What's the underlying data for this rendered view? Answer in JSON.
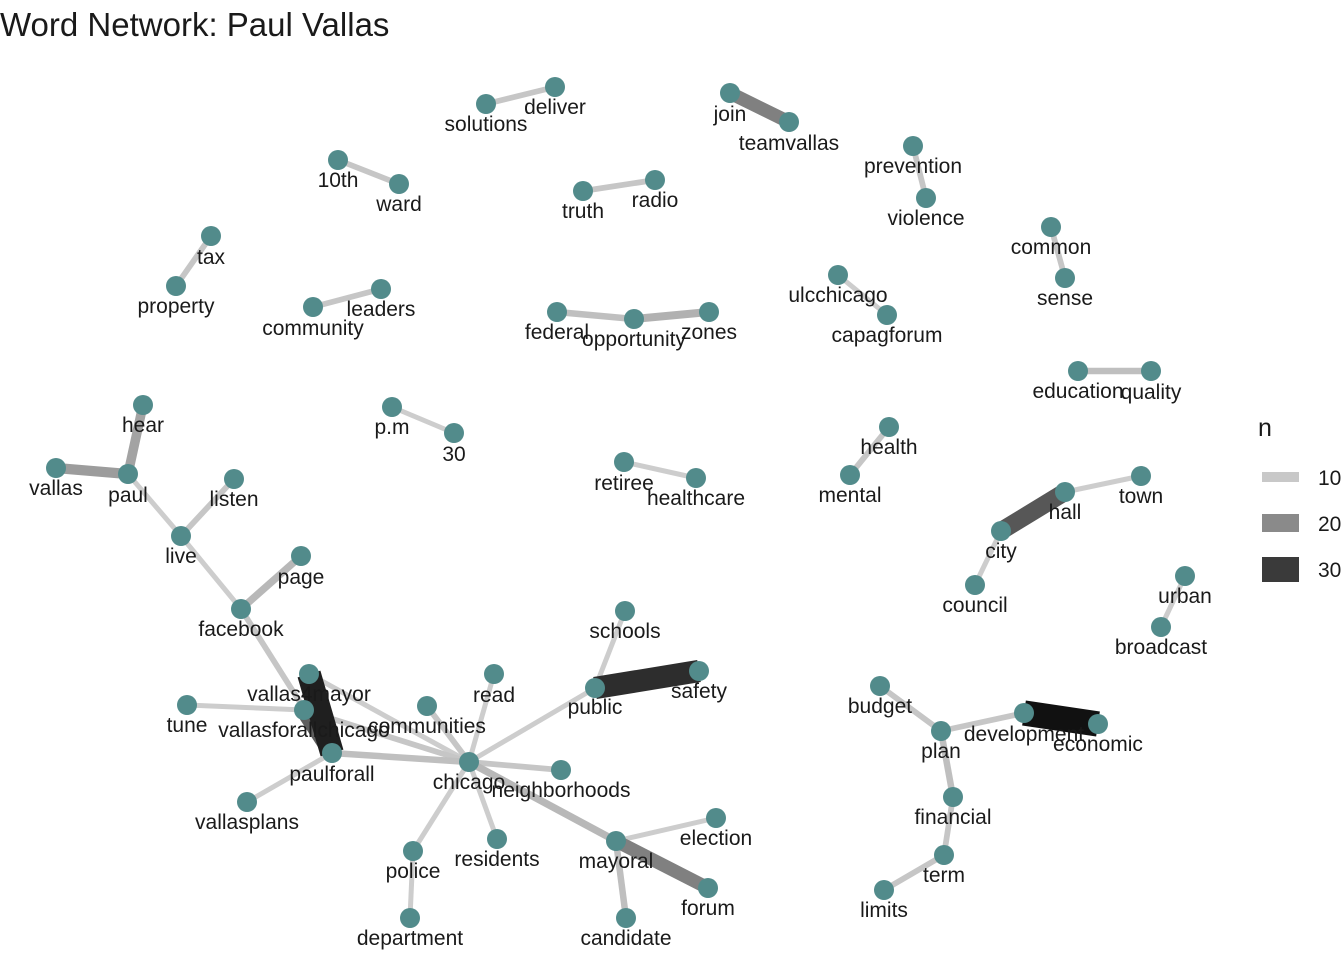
{
  "title": "Word Network: Paul Vallas",
  "legend": {
    "title": "n",
    "entries": [
      {
        "label": "10",
        "color": "#c8c8c8"
      },
      {
        "label": "20",
        "color": "#8a8a8a"
      },
      {
        "label": "30",
        "color": "#3a3a3a"
      }
    ]
  },
  "node_color": "#528b8b",
  "nodes": [
    {
      "id": "solutions",
      "label": "solutions"
    },
    {
      "id": "deliver",
      "label": "deliver"
    },
    {
      "id": "join",
      "label": "join"
    },
    {
      "id": "teamvallas",
      "label": "teamvallas"
    },
    {
      "id": "10th",
      "label": "10th"
    },
    {
      "id": "ward",
      "label": "ward"
    },
    {
      "id": "truth",
      "label": "truth"
    },
    {
      "id": "radio",
      "label": "radio"
    },
    {
      "id": "prevention",
      "label": "prevention"
    },
    {
      "id": "violence",
      "label": "violence"
    },
    {
      "id": "tax",
      "label": "tax"
    },
    {
      "id": "property",
      "label": "property"
    },
    {
      "id": "common",
      "label": "common"
    },
    {
      "id": "sense",
      "label": "sense"
    },
    {
      "id": "community",
      "label": "community"
    },
    {
      "id": "leaders",
      "label": "leaders"
    },
    {
      "id": "federal",
      "label": "federal"
    },
    {
      "id": "opportunity",
      "label": "opportunity"
    },
    {
      "id": "zones",
      "label": "zones"
    },
    {
      "id": "ulcchicago",
      "label": "ulcchicago"
    },
    {
      "id": "capagforum",
      "label": "capagforum"
    },
    {
      "id": "education",
      "label": "education"
    },
    {
      "id": "quality",
      "label": "quality"
    },
    {
      "id": "hear",
      "label": "hear"
    },
    {
      "id": "vallas",
      "label": "vallas"
    },
    {
      "id": "paul",
      "label": "paul"
    },
    {
      "id": "p.m",
      "label": "p.m"
    },
    {
      "id": "30",
      "label": "30"
    },
    {
      "id": "health",
      "label": "health"
    },
    {
      "id": "mental",
      "label": "mental"
    },
    {
      "id": "retiree",
      "label": "retiree"
    },
    {
      "id": "healthcare",
      "label": "healthcare"
    },
    {
      "id": "listen",
      "label": "listen"
    },
    {
      "id": "live",
      "label": "live"
    },
    {
      "id": "hall",
      "label": "hall"
    },
    {
      "id": "town",
      "label": "town"
    },
    {
      "id": "city",
      "label": "city"
    },
    {
      "id": "council",
      "label": "council"
    },
    {
      "id": "page",
      "label": "page"
    },
    {
      "id": "facebook",
      "label": "facebook"
    },
    {
      "id": "urban",
      "label": "urban"
    },
    {
      "id": "broadcast",
      "label": "broadcast"
    },
    {
      "id": "schools",
      "label": "schools"
    },
    {
      "id": "public",
      "label": "public"
    },
    {
      "id": "safety",
      "label": "safety"
    },
    {
      "id": "vallas4mayor",
      "label": "vallas4mayor"
    },
    {
      "id": "read",
      "label": "read"
    },
    {
      "id": "tune",
      "label": "tune"
    },
    {
      "id": "vallasforallchicago",
      "label": "vallasforallchicago"
    },
    {
      "id": "communities",
      "label": "communities"
    },
    {
      "id": "budget",
      "label": "budget"
    },
    {
      "id": "development",
      "label": "development"
    },
    {
      "id": "economic",
      "label": "economic"
    },
    {
      "id": "plan",
      "label": "plan"
    },
    {
      "id": "paulforall",
      "label": "paulforall"
    },
    {
      "id": "chicago",
      "label": "chicago"
    },
    {
      "id": "neighborhoods",
      "label": "neighborhoods"
    },
    {
      "id": "vallasplans",
      "label": "vallasplans"
    },
    {
      "id": "financial",
      "label": "financial"
    },
    {
      "id": "election",
      "label": "election"
    },
    {
      "id": "mayoral",
      "label": "mayoral"
    },
    {
      "id": "residents",
      "label": "residents"
    },
    {
      "id": "police",
      "label": "police"
    },
    {
      "id": "term",
      "label": "term"
    },
    {
      "id": "forum",
      "label": "forum"
    },
    {
      "id": "limits",
      "label": "limits"
    },
    {
      "id": "department",
      "label": "department"
    },
    {
      "id": "candidate",
      "label": "candidate"
    }
  ],
  "edges": [
    {
      "from": "solutions",
      "to": "deliver",
      "n": 10
    },
    {
      "from": "join",
      "to": "teamvallas",
      "n": 20
    },
    {
      "from": "10th",
      "to": "ward",
      "n": 10
    },
    {
      "from": "truth",
      "to": "radio",
      "n": 10
    },
    {
      "from": "prevention",
      "to": "violence",
      "n": 10
    },
    {
      "from": "tax",
      "to": "property",
      "n": 10
    },
    {
      "from": "common",
      "to": "sense",
      "n": 10
    },
    {
      "from": "community",
      "to": "leaders",
      "n": 10
    },
    {
      "from": "federal",
      "to": "opportunity",
      "n": 11
    },
    {
      "from": "opportunity",
      "to": "zones",
      "n": 13
    },
    {
      "from": "ulcchicago",
      "to": "capagforum",
      "n": 9
    },
    {
      "from": "education",
      "to": "quality",
      "n": 11
    },
    {
      "from": "hear",
      "to": "paul",
      "n": 15
    },
    {
      "from": "vallas",
      "to": "paul",
      "n": 16
    },
    {
      "from": "paul",
      "to": "live",
      "n": 9
    },
    {
      "from": "p.m",
      "to": "30",
      "n": 9
    },
    {
      "from": "health",
      "to": "mental",
      "n": 10
    },
    {
      "from": "retiree",
      "to": "healthcare",
      "n": 9
    },
    {
      "from": "listen",
      "to": "live",
      "n": 10
    },
    {
      "from": "live",
      "to": "facebook",
      "n": 9
    },
    {
      "from": "hall",
      "to": "town",
      "n": 9
    },
    {
      "from": "city",
      "to": "hall",
      "n": 26
    },
    {
      "from": "city",
      "to": "council",
      "n": 9
    },
    {
      "from": "page",
      "to": "facebook",
      "n": 12
    },
    {
      "from": "facebook",
      "to": "paulforall",
      "n": 10
    },
    {
      "from": "urban",
      "to": "broadcast",
      "n": 9
    },
    {
      "from": "schools",
      "to": "public",
      "n": 9
    },
    {
      "from": "public",
      "to": "safety",
      "n": 32
    },
    {
      "from": "public",
      "to": "chicago",
      "n": 9
    },
    {
      "from": "vallas4mayor",
      "to": "paulforall",
      "n": 34
    },
    {
      "from": "vallas4mayor",
      "to": "chicago",
      "n": 9
    },
    {
      "from": "tune",
      "to": "vallasforallchicago",
      "n": 9
    },
    {
      "from": "vallasforallchicago",
      "to": "paulforall",
      "n": 25
    },
    {
      "from": "vallasforallchicago",
      "to": "chicago",
      "n": 10
    },
    {
      "from": "communities",
      "to": "chicago",
      "n": 10
    },
    {
      "from": "read",
      "to": "chicago",
      "n": 9
    },
    {
      "from": "paulforall",
      "to": "chicago",
      "n": 11
    },
    {
      "from": "vallasplans",
      "to": "paulforall",
      "n": 9
    },
    {
      "from": "chicago",
      "to": "neighborhoods",
      "n": 10
    },
    {
      "from": "chicago",
      "to": "residents",
      "n": 9
    },
    {
      "from": "chicago",
      "to": "police",
      "n": 9
    },
    {
      "from": "chicago",
      "to": "mayoral",
      "n": 12
    },
    {
      "from": "police",
      "to": "department",
      "n": 9
    },
    {
      "from": "mayoral",
      "to": "election",
      "n": 9
    },
    {
      "from": "mayoral",
      "to": "forum",
      "n": 20
    },
    {
      "from": "mayoral",
      "to": "candidate",
      "n": 11
    },
    {
      "from": "budget",
      "to": "plan",
      "n": 10
    },
    {
      "from": "plan",
      "to": "development",
      "n": 10
    },
    {
      "from": "development",
      "to": "economic",
      "n": 36
    },
    {
      "from": "plan",
      "to": "financial",
      "n": 11
    },
    {
      "from": "financial",
      "to": "term",
      "n": 10
    },
    {
      "from": "term",
      "to": "limits",
      "n": 10
    }
  ]
}
